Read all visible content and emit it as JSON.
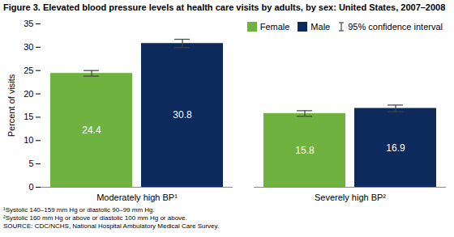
{
  "chart_data": {
    "type": "bar",
    "title": "Figure 3. Elevated blood pressure levels at health care visits by adults, by sex: United States, 2007–2008",
    "y_label": "Percent of visits",
    "categories": [
      "Moderately high BP¹",
      "Severely high BP²"
    ],
    "series": [
      {
        "name": "Female",
        "color": "#6fb23f",
        "values": [
          24.4,
          15.8
        ],
        "error": [
          0.6,
          0.6
        ]
      },
      {
        "name": "Male",
        "color": "#0c2b5c",
        "values": [
          30.8,
          16.9
        ],
        "error": [
          0.9,
          0.7
        ]
      }
    ],
    "error_label": "95% confidence interval",
    "ylim": [
      0,
      35
    ],
    "yticks": [
      0,
      5,
      10,
      15,
      20,
      25,
      30,
      35
    ],
    "data_labels": true,
    "legend": "top-right",
    "grid": false,
    "footnotes": [
      "¹Systolic 140–159 mm Hg or diastolic 90–99 mm Hg.",
      "²Systolic 160 mm Hg or above or diastolic 100 mm Hg or above."
    ],
    "source": "SOURCE: CDC/NCHS, National Hospital Ambulatory Medical Care Survey."
  }
}
